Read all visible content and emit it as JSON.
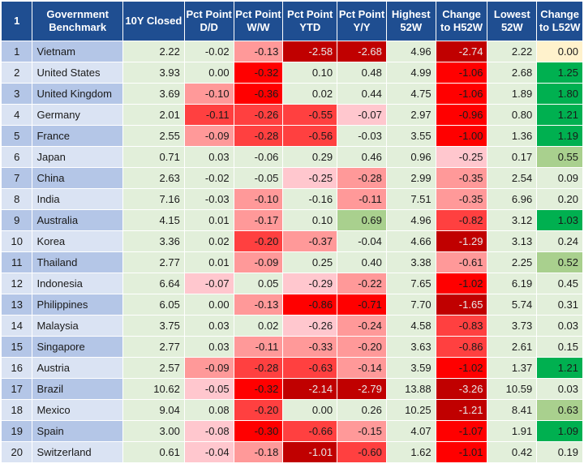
{
  "columns": [
    "1",
    "Government Benchmark",
    "10Y Closed",
    "Pct Point D/D",
    "Pct Point W/W",
    "Pct Point YTD",
    "Pct Point Y/Y",
    "Highest 52W",
    "Change to H52W",
    "Lowest 52W",
    "Change to L52W"
  ],
  "rows": [
    [
      "1",
      "Vietnam",
      "2.22",
      "-0.02",
      "-0.13",
      "-2.58",
      "-2.68",
      "4.96",
      "-2.74",
      "2.22",
      "0.00"
    ],
    [
      "2",
      "United States",
      "3.93",
      "0.00",
      "-0.32",
      "0.10",
      "0.48",
      "4.99",
      "-1.06",
      "2.68",
      "1.25"
    ],
    [
      "3",
      "United Kingdom",
      "3.69",
      "-0.10",
      "-0.36",
      "0.02",
      "0.44",
      "4.75",
      "-1.06",
      "1.89",
      "1.80"
    ],
    [
      "4",
      "Germany",
      "2.01",
      "-0.11",
      "-0.26",
      "-0.55",
      "-0.07",
      "2.97",
      "-0.96",
      "0.80",
      "1.21"
    ],
    [
      "5",
      "France",
      "2.55",
      "-0.09",
      "-0.28",
      "-0.56",
      "-0.03",
      "3.55",
      "-1.00",
      "1.36",
      "1.19"
    ],
    [
      "6",
      "Japan",
      "0.71",
      "0.03",
      "-0.06",
      "0.29",
      "0.46",
      "0.96",
      "-0.25",
      "0.17",
      "0.55"
    ],
    [
      "7",
      "China",
      "2.63",
      "-0.02",
      "-0.05",
      "-0.25",
      "-0.28",
      "2.99",
      "-0.35",
      "2.54",
      "0.09"
    ],
    [
      "8",
      "India",
      "7.16",
      "-0.03",
      "-0.10",
      "-0.16",
      "-0.11",
      "7.51",
      "-0.35",
      "6.96",
      "0.20"
    ],
    [
      "9",
      "Australia",
      "4.15",
      "0.01",
      "-0.17",
      "0.10",
      "0.69",
      "4.96",
      "-0.82",
      "3.12",
      "1.03"
    ],
    [
      "10",
      "Korea",
      "3.36",
      "0.02",
      "-0.20",
      "-0.37",
      "-0.04",
      "4.66",
      "-1.29",
      "3.13",
      "0.24"
    ],
    [
      "11",
      "Thailand",
      "2.77",
      "0.01",
      "-0.09",
      "0.25",
      "0.40",
      "3.38",
      "-0.61",
      "2.25",
      "0.52"
    ],
    [
      "12",
      "Indonesia",
      "6.64",
      "-0.07",
      "0.05",
      "-0.29",
      "-0.22",
      "7.65",
      "-1.02",
      "6.19",
      "0.45"
    ],
    [
      "13",
      "Philippines",
      "6.05",
      "0.00",
      "-0.13",
      "-0.86",
      "-0.71",
      "7.70",
      "-1.65",
      "5.74",
      "0.31"
    ],
    [
      "14",
      "Malaysia",
      "3.75",
      "0.03",
      "0.02",
      "-0.26",
      "-0.24",
      "4.58",
      "-0.83",
      "3.73",
      "0.03"
    ],
    [
      "15",
      "Singapore",
      "2.77",
      "0.03",
      "-0.11",
      "-0.33",
      "-0.20",
      "3.63",
      "-0.86",
      "2.61",
      "0.15"
    ],
    [
      "16",
      "Austria",
      "2.57",
      "-0.09",
      "-0.28",
      "-0.63",
      "-0.14",
      "3.59",
      "-1.02",
      "1.37",
      "1.21"
    ],
    [
      "17",
      "Brazil",
      "10.62",
      "-0.05",
      "-0.32",
      "-2.14",
      "-2.79",
      "13.88",
      "-3.26",
      "10.59",
      "0.03"
    ],
    [
      "18",
      "Mexico",
      "9.04",
      "0.08",
      "-0.20",
      "0.00",
      "0.26",
      "10.25",
      "-1.21",
      "8.41",
      "0.63"
    ],
    [
      "19",
      "Spain",
      "3.00",
      "-0.08",
      "-0.30",
      "-0.66",
      "-0.15",
      "4.07",
      "-1.07",
      "1.91",
      "1.09"
    ],
    [
      "20",
      "Switzerland",
      "0.61",
      "-0.04",
      "-0.18",
      "-1.01",
      "-0.60",
      "1.62",
      "-1.01",
      "0.42",
      "0.19"
    ]
  ],
  "colors": {
    "header_bg": "#1f4e91",
    "row_label_odd": "#b4c6e7",
    "row_label_even": "#dae3f3",
    "neutral_cell": "#e2efda",
    "pale_red": "#ffc7ce",
    "light_red": "#ff9999",
    "red": "#ff4040",
    "strong_red": "#ff0000",
    "dark_red": "#c00000",
    "pale_yellow": "#fff2cc",
    "light_green": "#a9d08e",
    "green": "#00b050"
  }
}
